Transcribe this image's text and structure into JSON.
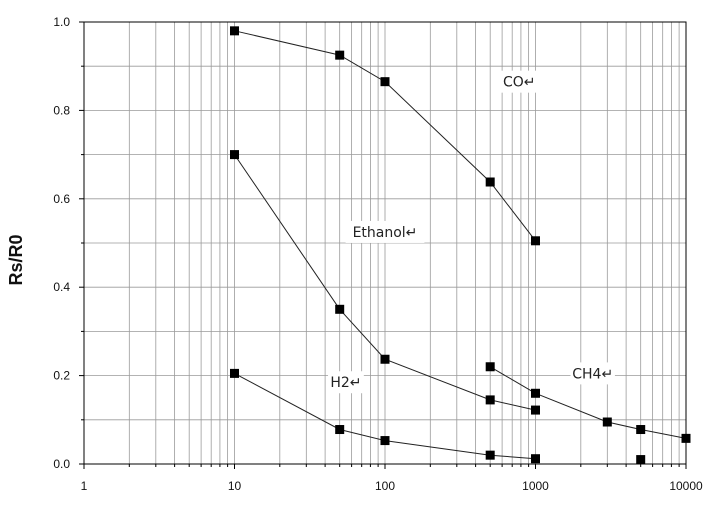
{
  "chart_data": {
    "type": "line",
    "xlabel": "",
    "ylabel": "Rs/R0",
    "xscale": "log",
    "xlim": [
      1,
      10000
    ],
    "ylim": [
      0,
      1.0
    ],
    "x_ticks": [
      "1",
      "10",
      "100",
      "1000",
      "10000"
    ],
    "y_ticks": [
      "0.0",
      "0.2",
      "0.4",
      "0.6",
      "0.8",
      "1.0"
    ],
    "grid": true,
    "marker": "square",
    "series": [
      {
        "name": "CO",
        "x": [
          10,
          50,
          100,
          500,
          1000
        ],
        "y": [
          0.98,
          0.925,
          0.865,
          0.638,
          0.505
        ]
      },
      {
        "name": "Ethanol",
        "x": [
          10,
          50,
          100,
          500,
          1000
        ],
        "y": [
          0.7,
          0.35,
          0.237,
          0.145,
          0.122
        ]
      },
      {
        "name": "H2",
        "x": [
          10,
          50,
          100,
          500,
          1000
        ],
        "y": [
          0.205,
          0.078,
          0.053,
          0.02,
          0.012
        ]
      },
      {
        "name": "CH4",
        "x": [
          500,
          1000,
          3000,
          5000,
          10000
        ],
        "y": [
          0.22,
          0.16,
          0.095,
          0.078,
          0.058
        ]
      }
    ],
    "extra_points": [
      {
        "x": 5000,
        "y": 0.01
      }
    ],
    "annotations": [
      {
        "text": "CO↵",
        "series": "CO"
      },
      {
        "text": "Ethanol↵",
        "series": "Ethanol"
      },
      {
        "text": "H2↵",
        "series": "H2"
      },
      {
        "text": "CH4↵",
        "series": "CH4"
      }
    ],
    "colors": {
      "line": "#222222",
      "marker": "#000000",
      "grid": "#9a9a9a",
      "axis": "#000000"
    }
  }
}
